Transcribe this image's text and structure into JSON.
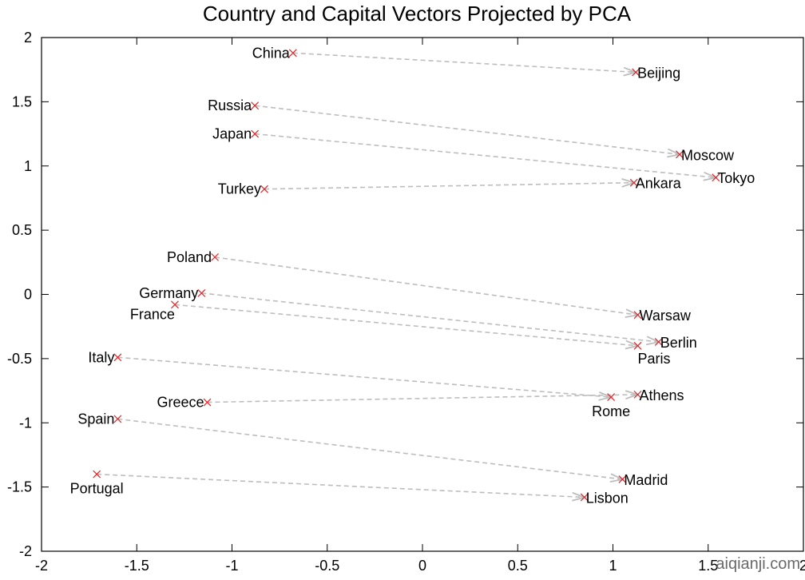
{
  "chart_data": {
    "type": "scatter",
    "title": "Country and Capital Vectors Projected by PCA",
    "xlabel": "",
    "ylabel": "",
    "xlim": [
      -2,
      2
    ],
    "ylim": [
      -2,
      2
    ],
    "xticks": [
      -2,
      -1.5,
      -1,
      -0.5,
      0,
      0.5,
      1,
      1.5,
      2
    ],
    "yticks": [
      -2,
      -1.5,
      -1,
      -0.5,
      0,
      0.5,
      1,
      1.5,
      2
    ],
    "grid": false,
    "point_color": "#e0262b",
    "arrow_color": "#bdbdbd",
    "pairs": [
      {
        "country": {
          "name": "China",
          "x": -0.68,
          "y": 1.88
        },
        "capital": {
          "name": "Beijing",
          "x": 1.12,
          "y": 1.73
        }
      },
      {
        "country": {
          "name": "Russia",
          "x": -0.88,
          "y": 1.47
        },
        "capital": {
          "name": "Moscow",
          "x": 1.35,
          "y": 1.09
        }
      },
      {
        "country": {
          "name": "Japan",
          "x": -0.88,
          "y": 1.25
        },
        "capital": {
          "name": "Tokyo",
          "x": 1.54,
          "y": 0.91
        }
      },
      {
        "country": {
          "name": "Turkey",
          "x": -0.83,
          "y": 0.82
        },
        "capital": {
          "name": "Ankara",
          "x": 1.11,
          "y": 0.87
        }
      },
      {
        "country": {
          "name": "Poland",
          "x": -1.09,
          "y": 0.29
        },
        "capital": {
          "name": "Warsaw",
          "x": 1.13,
          "y": -0.16
        }
      },
      {
        "country": {
          "name": "Germany",
          "x": -1.16,
          "y": 0.01
        },
        "capital": {
          "name": "Berlin",
          "x": 1.24,
          "y": -0.37
        }
      },
      {
        "country": {
          "name": "France",
          "x": -1.3,
          "y": -0.08
        },
        "capital": {
          "name": "Paris",
          "x": 1.13,
          "y": -0.4
        }
      },
      {
        "country": {
          "name": "Italy",
          "x": -1.6,
          "y": -0.49
        },
        "capital": {
          "name": "Rome",
          "x": 0.99,
          "y": -0.8
        }
      },
      {
        "country": {
          "name": "Greece",
          "x": -1.13,
          "y": -0.84
        },
        "capital": {
          "name": "Athens",
          "x": 1.13,
          "y": -0.78
        }
      },
      {
        "country": {
          "name": "Spain",
          "x": -1.6,
          "y": -0.97
        },
        "capital": {
          "name": "Madrid",
          "x": 1.05,
          "y": -1.44
        }
      },
      {
        "country": {
          "name": "Portugal",
          "x": -1.71,
          "y": -1.4
        },
        "capital": {
          "name": "Lisbon",
          "x": 0.85,
          "y": -1.58
        }
      }
    ]
  },
  "watermark": "aiqianji.com"
}
